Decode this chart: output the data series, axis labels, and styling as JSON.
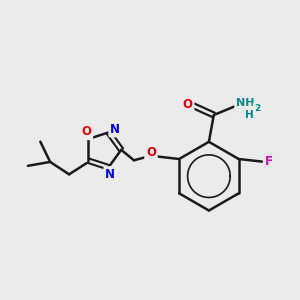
{
  "bg_color": "#ebebeb",
  "bond_color": "#1a1a1a",
  "bond_width": 1.8,
  "atom_colors": {
    "O_red": "#e00000",
    "N_blue": "#0000ee",
    "F_magenta": "#cc00cc",
    "NH2_teal": "#008888",
    "C_black": "#1a1a1a"
  },
  "xlim": [
    0.5,
    9.5
  ],
  "ylim": [
    1.5,
    8.5
  ]
}
